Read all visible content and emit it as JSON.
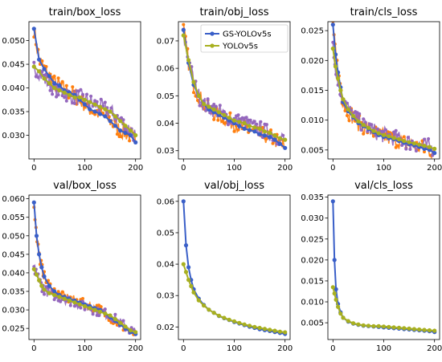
{
  "colors": {
    "gs": "#3a5fc8",
    "yolo": "#a8b020",
    "noise": [
      "#ff7f0e",
      "#9467bd",
      "#e377c2",
      "#2ca02c",
      "#d62728"
    ]
  },
  "chart_data": [
    {
      "type": "line",
      "title": "train/box_loss",
      "xlim": [
        -10,
        210
      ],
      "ylim": [
        0.025,
        0.054
      ],
      "xticks": [
        "0",
        "100",
        "200"
      ],
      "yticks": [
        "0.030",
        "0.035",
        "0.040",
        "0.045",
        "0.050"
      ],
      "x": [
        0,
        10,
        20,
        30,
        40,
        50,
        60,
        70,
        80,
        90,
        100,
        110,
        120,
        130,
        140,
        150,
        160,
        170,
        180,
        190,
        200
      ],
      "series": [
        {
          "name": "GS-YOLOv5s",
          "color": "gs",
          "values": [
            0.0525,
            0.046,
            0.044,
            0.0425,
            0.041,
            0.0405,
            0.0395,
            0.039,
            0.0385,
            0.0375,
            0.0365,
            0.0355,
            0.035,
            0.0345,
            0.034,
            0.033,
            0.032,
            0.031,
            0.0305,
            0.03,
            0.0285
          ]
        },
        {
          "name": "YOLOv5s",
          "color": "yolo",
          "values": [
            0.0445,
            0.0435,
            0.042,
            0.041,
            0.04,
            0.0395,
            0.039,
            0.0385,
            0.038,
            0.038,
            0.0375,
            0.037,
            0.0365,
            0.036,
            0.0355,
            0.035,
            0.034,
            0.033,
            0.032,
            0.031,
            0.03
          ]
        }
      ]
    },
    {
      "type": "line",
      "title": "train/obj_loss",
      "xlim": [
        -10,
        210
      ],
      "ylim": [
        0.027,
        0.077
      ],
      "xticks": [
        "0",
        "100",
        "200"
      ],
      "yticks": [
        "0.03",
        "0.04",
        "0.05",
        "0.06",
        "0.07"
      ],
      "legend": "upper right",
      "x": [
        0,
        10,
        20,
        30,
        40,
        50,
        60,
        70,
        80,
        90,
        100,
        110,
        120,
        130,
        140,
        150,
        160,
        170,
        180,
        190,
        200
      ],
      "series": [
        {
          "name": "GS-YOLOv5s",
          "color": "gs",
          "values": [
            0.074,
            0.062,
            0.054,
            0.05,
            0.047,
            0.045,
            0.044,
            0.043,
            0.042,
            0.041,
            0.04,
            0.039,
            0.038,
            0.0375,
            0.037,
            0.036,
            0.0355,
            0.035,
            0.034,
            0.0325,
            0.031
          ]
        },
        {
          "name": "YOLOv5s",
          "color": "yolo",
          "values": [
            0.072,
            0.063,
            0.055,
            0.05,
            0.047,
            0.046,
            0.045,
            0.044,
            0.043,
            0.042,
            0.041,
            0.0405,
            0.04,
            0.039,
            0.0385,
            0.038,
            0.037,
            0.0365,
            0.0355,
            0.0345,
            0.034
          ]
        }
      ]
    },
    {
      "type": "line",
      "title": "train/cls_loss",
      "xlim": [
        -10,
        210
      ],
      "ylim": [
        0.0035,
        0.0265
      ],
      "xticks": [
        "0",
        "100",
        "200"
      ],
      "yticks": [
        "0.005",
        "0.010",
        "0.015",
        "0.020",
        "0.025"
      ],
      "x": [
        0,
        5,
        10,
        15,
        20,
        30,
        40,
        50,
        60,
        70,
        80,
        90,
        100,
        110,
        120,
        130,
        140,
        150,
        160,
        170,
        180,
        190,
        200
      ],
      "series": [
        {
          "name": "GS-YOLOv5s",
          "color": "gs",
          "values": [
            0.026,
            0.021,
            0.018,
            0.0155,
            0.013,
            0.0115,
            0.0105,
            0.0095,
            0.009,
            0.0085,
            0.008,
            0.0075,
            0.0072,
            0.007,
            0.0068,
            0.0065,
            0.0062,
            0.006,
            0.0058,
            0.0055,
            0.0052,
            0.005,
            0.0045
          ]
        },
        {
          "name": "YOLOv5s",
          "color": "yolo",
          "values": [
            0.022,
            0.019,
            0.017,
            0.015,
            0.0135,
            0.0118,
            0.0107,
            0.0098,
            0.0092,
            0.0087,
            0.0082,
            0.0078,
            0.0075,
            0.0073,
            0.007,
            0.0068,
            0.0065,
            0.0063,
            0.0061,
            0.0059,
            0.0057,
            0.0055,
            0.0052
          ]
        }
      ]
    },
    {
      "type": "line",
      "title": "val/box_loss",
      "xlim": [
        -10,
        210
      ],
      "ylim": [
        0.022,
        0.061
      ],
      "xticks": [
        "0",
        "100",
        "200"
      ],
      "yticks": [
        "0.025",
        "0.030",
        "0.035",
        "0.040",
        "0.045",
        "0.050",
        "0.055",
        "0.060"
      ],
      "x": [
        0,
        5,
        10,
        15,
        20,
        30,
        40,
        50,
        60,
        70,
        80,
        90,
        100,
        110,
        120,
        130,
        140,
        150,
        160,
        170,
        180,
        190,
        200
      ],
      "series": [
        {
          "name": "GS-YOLOv5s",
          "color": "gs",
          "values": [
            0.059,
            0.05,
            0.045,
            0.0415,
            0.039,
            0.0365,
            0.035,
            0.034,
            0.0335,
            0.033,
            0.0325,
            0.032,
            0.0315,
            0.031,
            0.0305,
            0.03,
            0.029,
            0.028,
            0.027,
            0.026,
            0.025,
            0.024,
            0.0235
          ]
        },
        {
          "name": "YOLOv5s",
          "color": "yolo",
          "values": [
            0.041,
            0.0395,
            0.038,
            0.0365,
            0.0355,
            0.0345,
            0.034,
            0.0335,
            0.033,
            0.0325,
            0.032,
            0.0315,
            0.031,
            0.0305,
            0.03,
            0.0295,
            0.029,
            0.0285,
            0.0275,
            0.0265,
            0.0255,
            0.0245,
            0.024
          ]
        }
      ]
    },
    {
      "type": "line",
      "title": "val/obj_loss",
      "xlim": [
        -10,
        210
      ],
      "ylim": [
        0.016,
        0.062
      ],
      "xticks": [
        "0",
        "100",
        "200"
      ],
      "yticks": [
        "0.02",
        "0.03",
        "0.04",
        "0.05",
        "0.06"
      ],
      "x": [
        0,
        5,
        10,
        15,
        20,
        30,
        40,
        50,
        60,
        70,
        80,
        90,
        100,
        110,
        120,
        130,
        140,
        150,
        160,
        170,
        180,
        190,
        200
      ],
      "series": [
        {
          "name": "GS-YOLOv5s",
          "color": "gs",
          "values": [
            0.06,
            0.046,
            0.039,
            0.035,
            0.032,
            0.029,
            0.027,
            0.0255,
            0.0245,
            0.0235,
            0.0228,
            0.0222,
            0.0216,
            0.0211,
            0.0206,
            0.0201,
            0.0197,
            0.0193,
            0.019,
            0.0187,
            0.0184,
            0.0181,
            0.0178
          ]
        },
        {
          "name": "YOLOv5s",
          "color": "yolo",
          "values": [
            0.04,
            0.0375,
            0.035,
            0.033,
            0.031,
            0.0285,
            0.0268,
            0.0255,
            0.0245,
            0.0236,
            0.0229,
            0.0223,
            0.0218,
            0.0213,
            0.0208,
            0.0204,
            0.02,
            0.0197,
            0.0194,
            0.0191,
            0.0188,
            0.0185,
            0.0183
          ]
        }
      ]
    },
    {
      "type": "line",
      "title": "val/cls_loss",
      "xlim": [
        -10,
        210
      ],
      "ylim": [
        0.001,
        0.0355
      ],
      "xticks": [
        "0",
        "100",
        "200"
      ],
      "yticks": [
        "0.005",
        "0.010",
        "0.015",
        "0.020",
        "0.025",
        "0.030",
        "0.035"
      ],
      "x": [
        0,
        3,
        6,
        10,
        15,
        20,
        30,
        40,
        50,
        60,
        70,
        80,
        90,
        100,
        110,
        120,
        130,
        140,
        150,
        160,
        170,
        180,
        190,
        200
      ],
      "series": [
        {
          "name": "GS-YOLOv5s",
          "color": "gs",
          "values": [
            0.034,
            0.02,
            0.013,
            0.0095,
            0.0075,
            0.0062,
            0.0053,
            0.0048,
            0.0045,
            0.0043,
            0.0042,
            0.0041,
            0.004,
            0.0039,
            0.0038,
            0.0037,
            0.0036,
            0.0035,
            0.0034,
            0.0033,
            0.0032,
            0.0031,
            0.003,
            0.0028
          ]
        },
        {
          "name": "YOLOv5s",
          "color": "yolo",
          "values": [
            0.0135,
            0.012,
            0.0105,
            0.0088,
            0.0072,
            0.0062,
            0.0054,
            0.0049,
            0.0046,
            0.0044,
            0.0043,
            0.0042,
            0.0042,
            0.0041,
            0.004,
            0.0039,
            0.0038,
            0.0037,
            0.0036,
            0.0035,
            0.0034,
            0.0033,
            0.0032,
            0.0031
          ]
        }
      ]
    }
  ]
}
